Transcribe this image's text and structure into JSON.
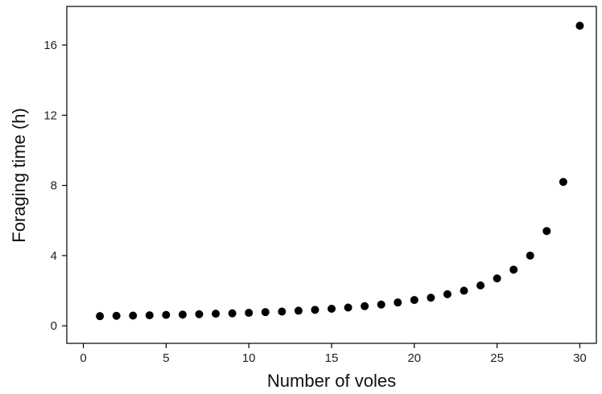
{
  "chart_data": {
    "type": "scatter",
    "title": "",
    "xlabel": "Number of voles",
    "ylabel": "Foraging time (h)",
    "xlim": [
      -1,
      31
    ],
    "ylim": [
      -1.0,
      18.2
    ],
    "xticks": [
      0,
      5,
      10,
      15,
      20,
      25,
      30
    ],
    "yticks": [
      0,
      4,
      8,
      12,
      16
    ],
    "grid": false,
    "legend": "none",
    "marker_color": "#000000",
    "points": [
      {
        "x": 1,
        "y": 0.55
      },
      {
        "x": 2,
        "y": 0.57
      },
      {
        "x": 3,
        "y": 0.58
      },
      {
        "x": 4,
        "y": 0.6
      },
      {
        "x": 5,
        "y": 0.62
      },
      {
        "x": 6,
        "y": 0.64
      },
      {
        "x": 7,
        "y": 0.66
      },
      {
        "x": 8,
        "y": 0.69
      },
      {
        "x": 9,
        "y": 0.71
      },
      {
        "x": 10,
        "y": 0.74
      },
      {
        "x": 11,
        "y": 0.78
      },
      {
        "x": 12,
        "y": 0.81
      },
      {
        "x": 13,
        "y": 0.86
      },
      {
        "x": 14,
        "y": 0.91
      },
      {
        "x": 15,
        "y": 0.97
      },
      {
        "x": 16,
        "y": 1.04
      },
      {
        "x": 17,
        "y": 1.12
      },
      {
        "x": 18,
        "y": 1.21
      },
      {
        "x": 19,
        "y": 1.33
      },
      {
        "x": 20,
        "y": 1.47
      },
      {
        "x": 21,
        "y": 1.6
      },
      {
        "x": 22,
        "y": 1.8
      },
      {
        "x": 23,
        "y": 2.0
      },
      {
        "x": 24,
        "y": 2.3
      },
      {
        "x": 25,
        "y": 2.7
      },
      {
        "x": 26,
        "y": 3.2
      },
      {
        "x": 27,
        "y": 4.0
      },
      {
        "x": 28,
        "y": 5.4
      },
      {
        "x": 29,
        "y": 8.2
      },
      {
        "x": 30,
        "y": 17.1
      }
    ]
  }
}
